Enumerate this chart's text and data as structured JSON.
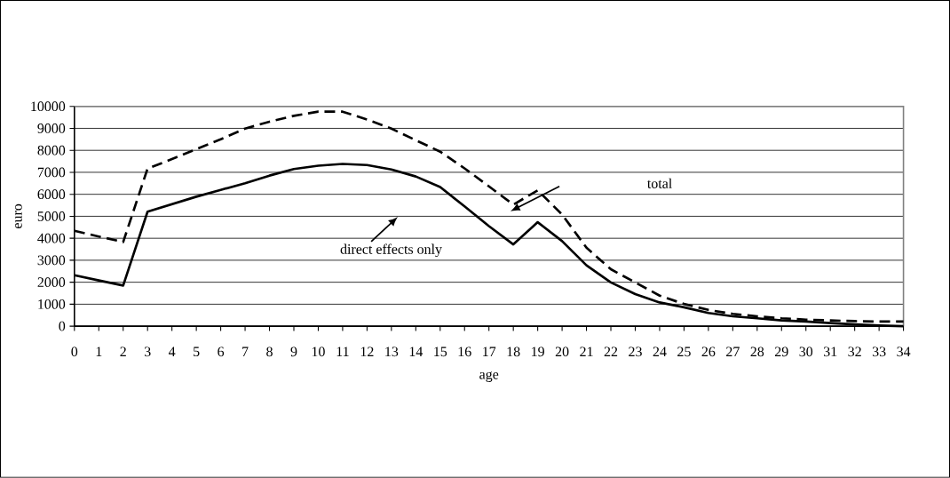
{
  "chart_data": {
    "type": "line",
    "xlabel": "age",
    "ylabel": "euro",
    "categories": [
      "0",
      "1",
      "2",
      "3",
      "4",
      "5",
      "6",
      "7",
      "8",
      "9",
      "10",
      "11",
      "12",
      "13",
      "14",
      "15",
      "16",
      "17",
      "18",
      "19",
      "20",
      "21",
      "22",
      "23",
      "24",
      "25",
      "26",
      "27",
      "28",
      "29",
      "30",
      "31",
      "32",
      "33",
      "34"
    ],
    "series": [
      {
        "color": "#000000",
        "line_style": "solid",
        "values": [
          2320,
          2080,
          1850,
          5210,
          5550,
          5890,
          6200,
          6500,
          6850,
          7150,
          7300,
          7380,
          7330,
          7130,
          6810,
          6330,
          5450,
          4550,
          3720,
          4730,
          3870,
          2770,
          1990,
          1460,
          1080,
          860,
          600,
          450,
          360,
          260,
          210,
          140,
          80,
          30,
          0
        ]
      },
      {
        "color": "#000000",
        "line_style": "dashed",
        "values": [
          4340,
          4080,
          3830,
          7170,
          7600,
          8050,
          8500,
          8990,
          9300,
          9570,
          9760,
          9760,
          9400,
          8990,
          8460,
          7940,
          7180,
          6360,
          5530,
          6180,
          5080,
          3570,
          2590,
          1990,
          1390,
          1010,
          740,
          560,
          450,
          360,
          300,
          260,
          230,
          210,
          210
        ]
      }
    ],
    "ylim": [
      0,
      10000
    ],
    "yticks": [
      0,
      1000,
      2000,
      3000,
      4000,
      5000,
      6000,
      7000,
      8000,
      9000,
      10000
    ],
    "grid": "y",
    "marker": "none",
    "annotations": [
      "total",
      "direct effects only"
    ]
  }
}
